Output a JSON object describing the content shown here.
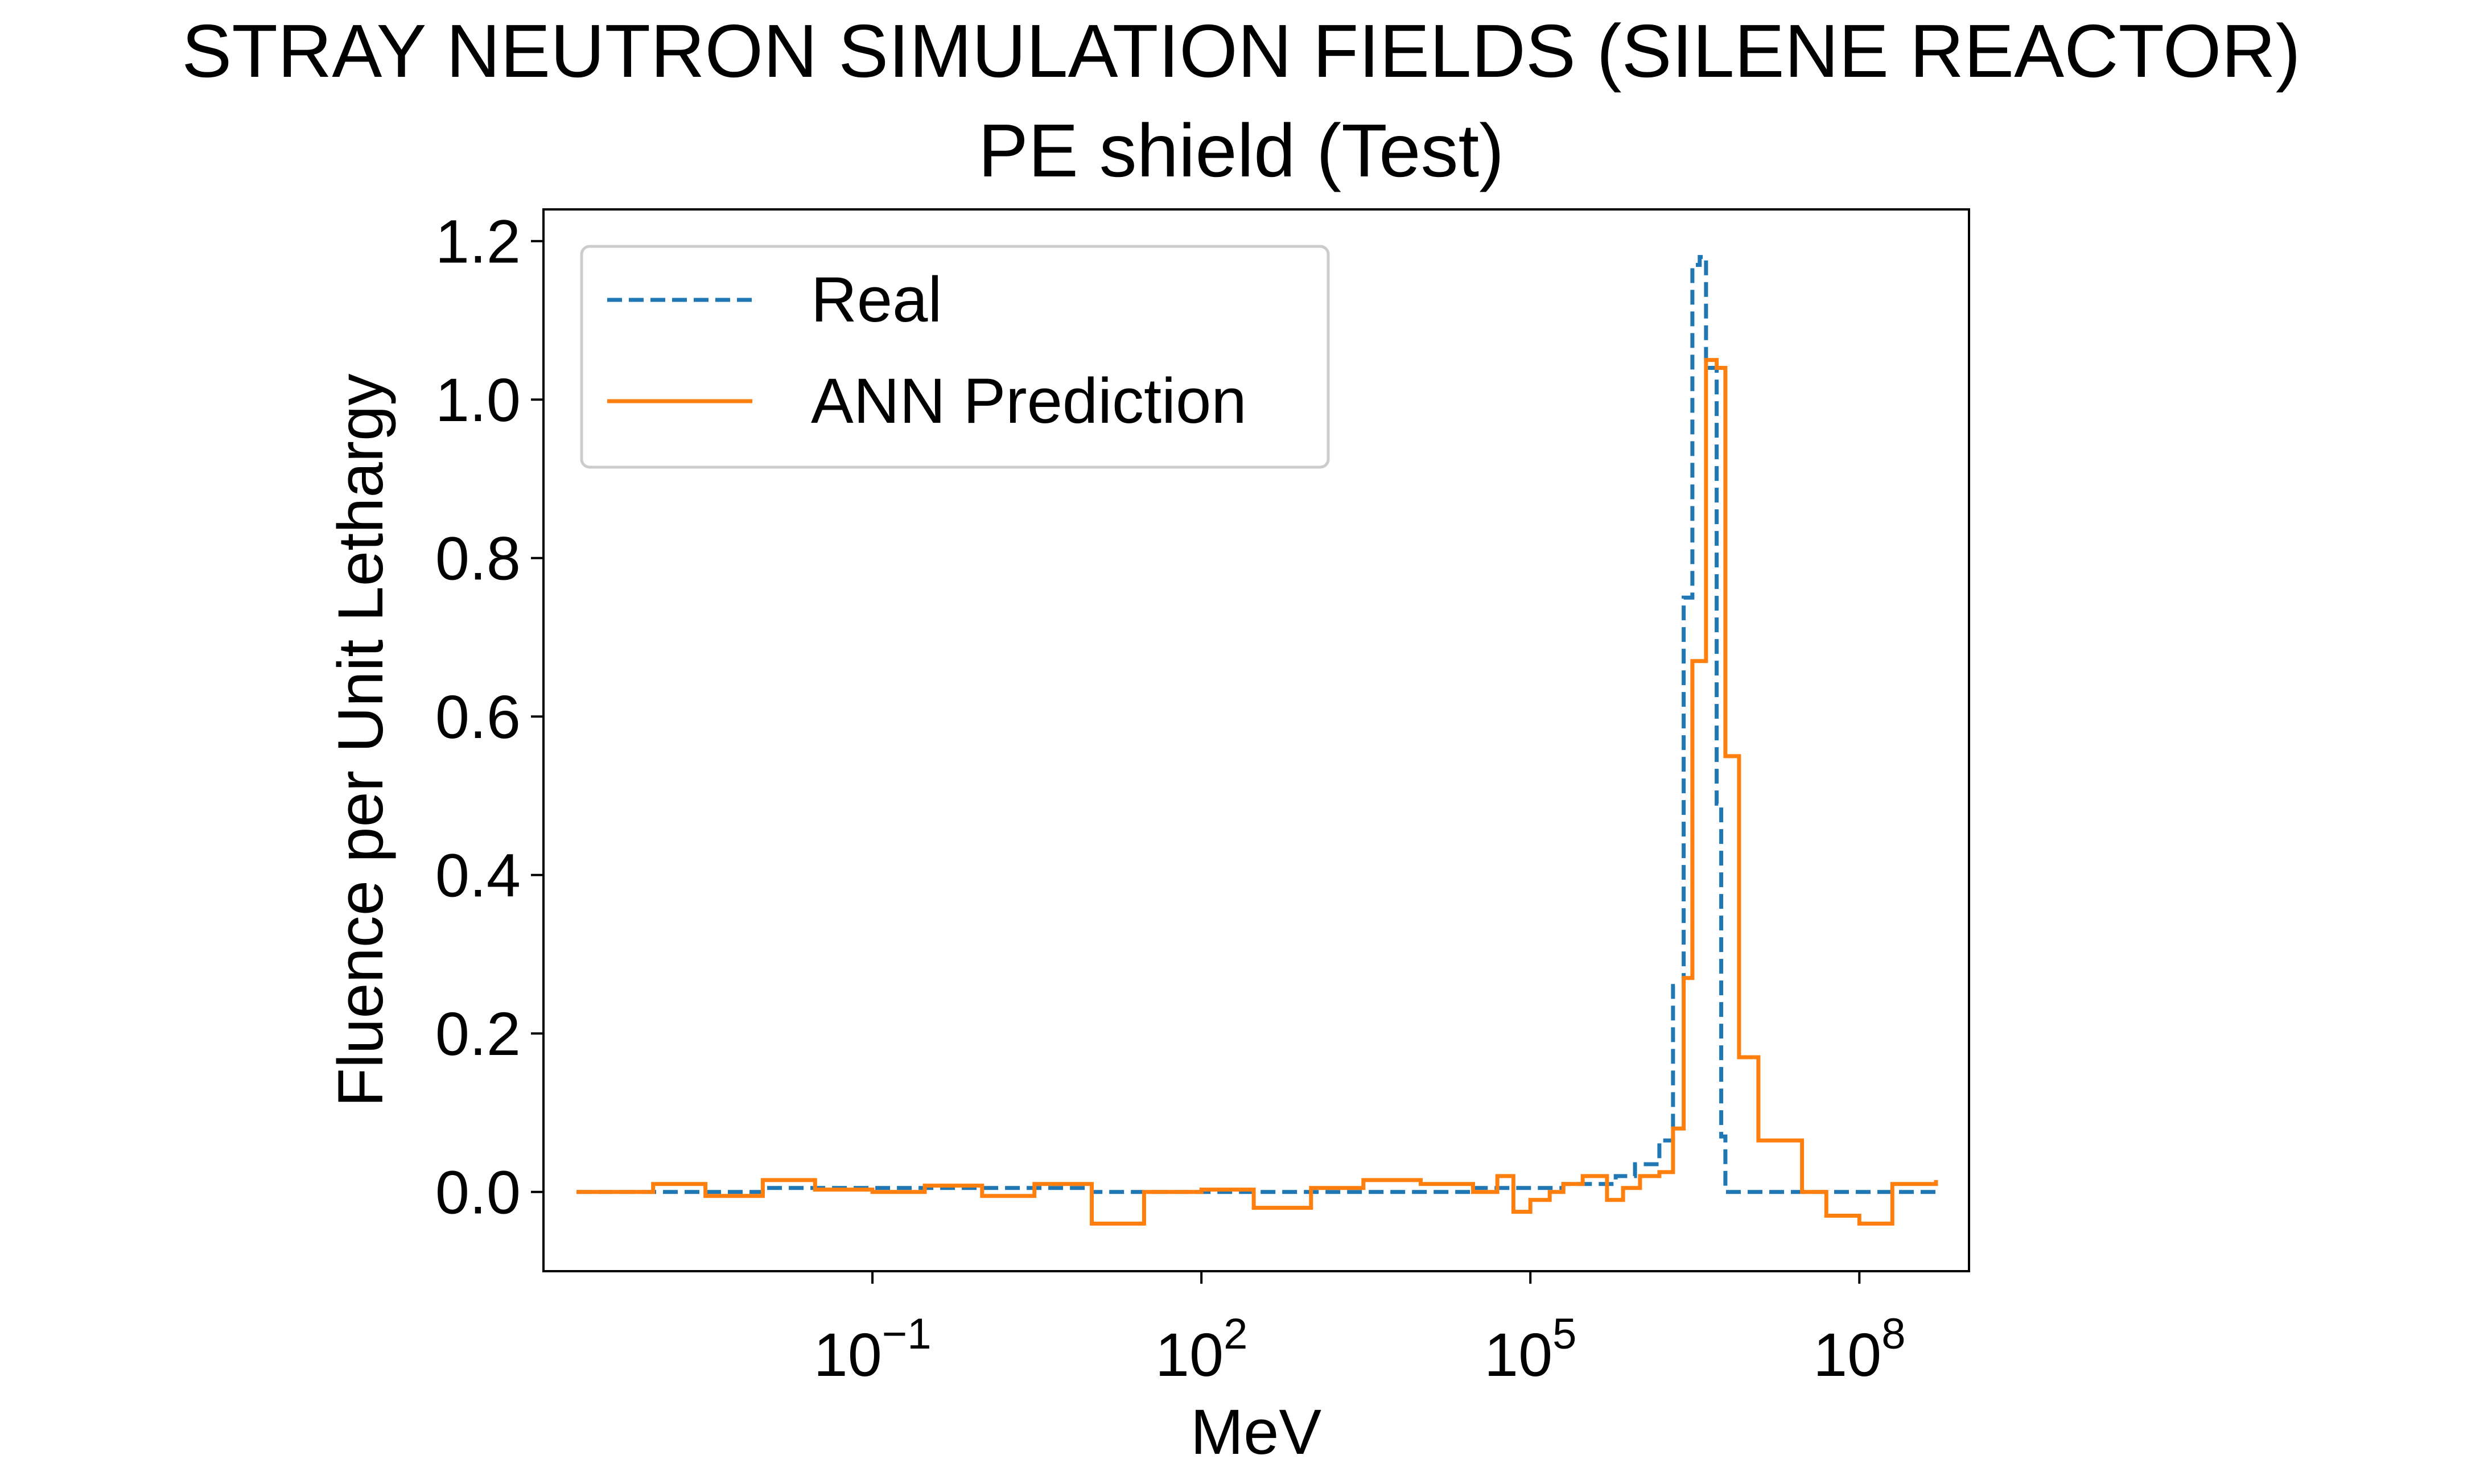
{
  "chart_data": {
    "type": "line",
    "step": true,
    "title": "STRAY NEUTRON SIMULATION FIELDS (SILENE REACTOR)",
    "subtitle": "PE shield (Test)",
    "xlabel": "MeV",
    "ylabel": "Fluence per Unit Lethargy",
    "xscale": "log",
    "xlim": [
      0.0001,
      1000000000.0
    ],
    "ylim": [
      -0.1,
      1.24
    ],
    "xticks": [
      {
        "value": 0.1,
        "base": "10",
        "exp": "−1"
      },
      {
        "value": 100,
        "base": "10",
        "exp": "2"
      },
      {
        "value": 100000,
        "base": "10",
        "exp": "5"
      },
      {
        "value": 100000000,
        "base": "10",
        "exp": "8"
      }
    ],
    "yticks": [
      {
        "value": 0.0,
        "label": "0.0"
      },
      {
        "value": 0.2,
        "label": "0.2"
      },
      {
        "value": 0.4,
        "label": "0.4"
      },
      {
        "value": 0.6,
        "label": "0.6"
      },
      {
        "value": 0.8,
        "label": "0.8"
      },
      {
        "value": 1.0,
        "label": "1.0"
      },
      {
        "value": 1.2,
        "label": "1.2"
      }
    ],
    "grid": false,
    "legend": {
      "position": "top-left"
    },
    "series": [
      {
        "name": "Real",
        "color": "#1f77b4",
        "style": "dashed",
        "x": [
          0.0002,
          0.01,
          10,
          30000,
          200000,
          600000,
          900000,
          1500000,
          2000000,
          2500000,
          3000000,
          3500000,
          4000000,
          5000000,
          5500000,
          6000000,
          7000000,
          500000000
        ],
        "y": [
          0.0,
          0.005,
          0.0,
          0.005,
          0.01,
          0.02,
          0.035,
          0.065,
          0.26,
          0.75,
          1.17,
          1.18,
          1.04,
          0.49,
          0.07,
          0.0,
          0.0,
          0.0
        ]
      },
      {
        "name": "ANN Prediction",
        "color": "#ff7f0e",
        "style": "solid",
        "x": [
          0.0002,
          0.001,
          0.003,
          0.01,
          0.03,
          0.1,
          0.3,
          1,
          3,
          10,
          30,
          100,
          300,
          1000,
          3000,
          10000,
          30000,
          50000,
          70000,
          100000,
          150000,
          200000,
          300000,
          500000,
          700000,
          1000000,
          1500000,
          2000000,
          2500000,
          3000000,
          4000000,
          5000000,
          6000000,
          8000000,
          12000000,
          30000000,
          50000000,
          100000000,
          200000000,
          500000000
        ],
        "y": [
          0.0,
          0.01,
          -0.005,
          0.015,
          0.003,
          0.0,
          0.008,
          -0.005,
          0.01,
          -0.04,
          0.0,
          0.003,
          -0.02,
          0.005,
          0.015,
          0.01,
          0.0,
          0.02,
          -0.025,
          -0.01,
          0.0,
          0.01,
          0.02,
          -0.01,
          0.005,
          0.02,
          0.025,
          0.08,
          0.27,
          0.67,
          1.05,
          1.04,
          0.55,
          0.17,
          0.065,
          0.0,
          -0.03,
          -0.04,
          0.01,
          0.015
        ]
      }
    ]
  }
}
